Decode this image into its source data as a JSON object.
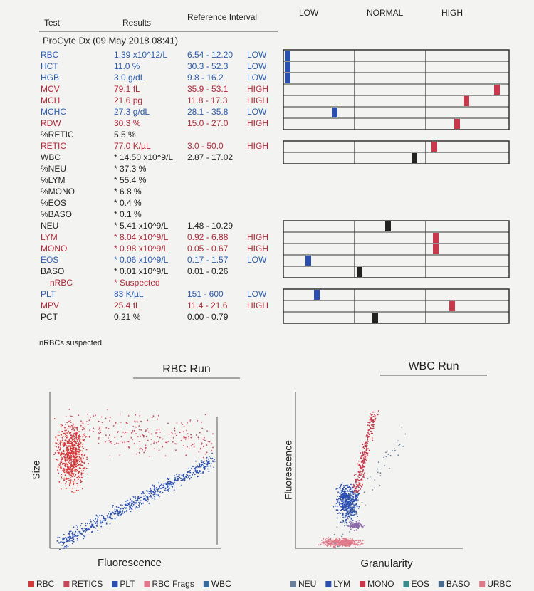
{
  "columns": [
    "Test",
    "Results",
    "Reference Interval",
    "LOW",
    "NORMAL",
    "HIGH"
  ],
  "section": "ProCyte Dx (09 May 2018 08:41)",
  "rows": [
    {
      "test": "RBC",
      "result": "1.39 x10^12/L",
      "range": "6.54 - 12.20",
      "flag": "LOW",
      "color": "#2a5cae"
    },
    {
      "test": "HCT",
      "result": "11.0 %",
      "range": "30.3 - 52.3",
      "flag": "LOW",
      "color": "#2a5cae"
    },
    {
      "test": "HGB",
      "result": "3.0 g/dL",
      "range": "9.8 - 16.2",
      "flag": "LOW",
      "color": "#2a5cae"
    },
    {
      "test": "MCV",
      "result": "79.1 fL",
      "range": "35.9 - 53.1",
      "flag": "HIGH",
      "color": "#b02a3a"
    },
    {
      "test": "MCH",
      "result": "21.6 pg",
      "range": "11.8 - 17.3",
      "flag": "HIGH",
      "color": "#b02a3a"
    },
    {
      "test": "MCHC",
      "result": "27.3 g/dL",
      "range": "28.1 - 35.8",
      "flag": "LOW",
      "color": "#2a5cae"
    },
    {
      "test": "RDW",
      "result": "30.3 %",
      "range": "15.0 - 27.0",
      "flag": "HIGH",
      "color": "#b02a3a"
    },
    {
      "test": "%RETIC",
      "result": "5.5 %",
      "color": "#222222"
    },
    {
      "test": "RETIC",
      "result": "77.0 K/µL",
      "range": "3.0 - 50.0",
      "flag": "HIGH",
      "color": "#b02a3a"
    },
    {
      "test": "WBC",
      "result": "* 14.50 x10^9/L",
      "range": "2.87 - 17.02",
      "color": "#222222"
    },
    {
      "test": "%NEU",
      "result": "* 37.3 %",
      "color": "#222222"
    },
    {
      "test": "%LYM",
      "result": "* 55.4 %",
      "color": "#222222"
    },
    {
      "test": "%MONO",
      "result": "* 6.8 %",
      "color": "#222222"
    },
    {
      "test": "%EOS",
      "result": "* 0.4 %",
      "color": "#222222"
    },
    {
      "test": "%BASO",
      "result": "* 0.1 %",
      "color": "#222222"
    },
    {
      "test": "NEU",
      "result": "* 5.41 x10^9/L",
      "range": "1.48 - 10.29",
      "color": "#222222"
    },
    {
      "test": "LYM",
      "result": "* 8.04 x10^9/L",
      "range": "0.92 - 6.88",
      "flag": "HIGH",
      "color": "#b02a3a"
    },
    {
      "test": "MONO",
      "result": "* 0.98 x10^9/L",
      "range": "0.05 - 0.67",
      "flag": "HIGH",
      "color": "#b02a3a"
    },
    {
      "test": "EOS",
      "result": "* 0.06 x10^9/L",
      "range": "0.17 - 1.57",
      "flag": "LOW",
      "color": "#2a5cae"
    },
    {
      "test": "BASO",
      "result": "* 0.01 x10^9/L",
      "range": "0.01 - 0.26",
      "color": "#222222"
    },
    {
      "test": "nRBC",
      "result": "* Suspected",
      "color": "#b02a3a"
    },
    {
      "test": "PLT",
      "result": "83 K/µL",
      "range": "151 - 600",
      "flag": "LOW",
      "color": "#2a5cae"
    },
    {
      "test": "MPV",
      "result": "25.4 fL",
      "range": "11.4 - 21.6",
      "flag": "HIGH",
      "color": "#b02a3a"
    },
    {
      "test": "PCT",
      "result": "0.21 %",
      "range": "0.00 - 0.79",
      "color": "#222222"
    }
  ],
  "note": "nRBCs suspected",
  "charts": [
    {
      "title": "RBC Run",
      "y_label": "Size",
      "x_label": "Fluorescence",
      "legend": [
        {
          "name": "RBC",
          "color": "#d23a3a"
        },
        {
          "name": "RETICS",
          "color": "#c8485a"
        },
        {
          "name": "PLT",
          "color": "#2a4fae"
        },
        {
          "name": "RBC Frags",
          "color": "#e07a8a"
        },
        {
          "name": "WBC",
          "color": "#3a6a9a"
        }
      ]
    },
    {
      "title": "WBC Run",
      "y_label": "Fluorescence",
      "x_label": "Granularity",
      "legend": [
        {
          "name": "NEU",
          "color": "#6a7f9a"
        },
        {
          "name": "LYM",
          "color": "#2a4fae"
        },
        {
          "name": "MONO",
          "color": "#c8384a"
        },
        {
          "name": "EOS",
          "color": "#3a8a8a"
        },
        {
          "name": "BASO",
          "color": "#4a6a8a"
        },
        {
          "name": "URBC",
          "color": "#e07a8a"
        }
      ]
    }
  ]
}
